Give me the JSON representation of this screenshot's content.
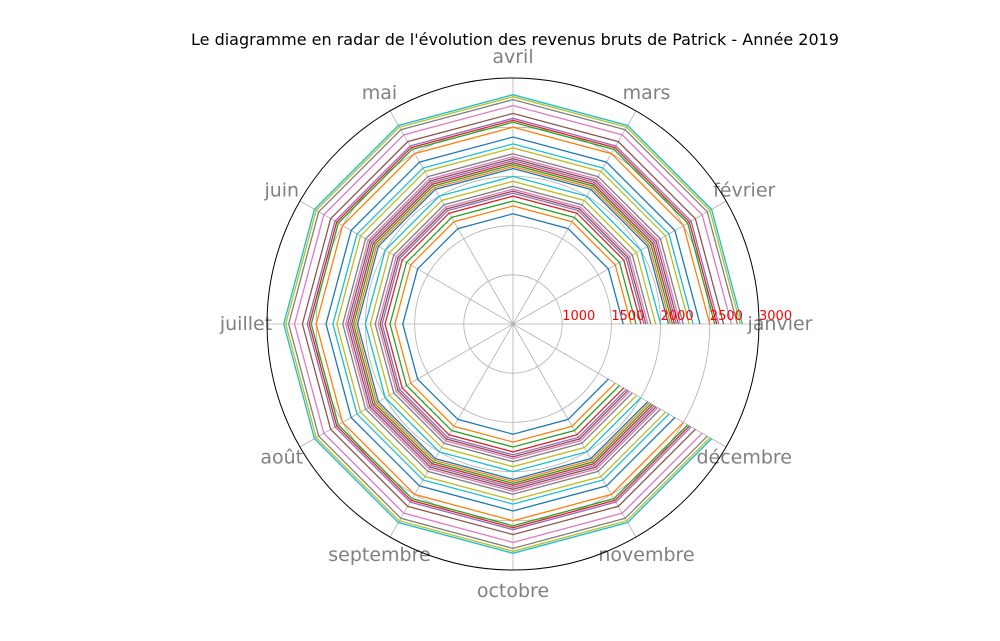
{
  "chart_data": {
    "type": "radar",
    "title": "Le diagramme en radar de l'évolution des revenus bruts de Patrick - Année 2019",
    "categories": [
      "janvier",
      "février",
      "mars",
      "avril",
      "mai",
      "juin",
      "juillet",
      "août",
      "septembre",
      "octobre",
      "novembre",
      "décembre"
    ],
    "radial_ticks": [
      1000,
      1500,
      2000,
      2500,
      3000
    ],
    "radial_tick_color": "#ff0000",
    "rlim": [
      500,
      3000
    ],
    "grid": true,
    "series_colors": [
      "#1f77b4",
      "#ff7f0e",
      "#2ca02c",
      "#d62728",
      "#9467bd",
      "#8c564b",
      "#e377c2",
      "#7f7f7f",
      "#bcbd22",
      "#17becf"
    ],
    "series": [
      {
        "values": [
          1620,
          1620,
          1620,
          1620,
          1620,
          1620,
          1620,
          1620,
          1620,
          1620,
          1620,
          1620
        ]
      },
      {
        "values": [
          1700,
          1700,
          1700,
          1700,
          1700,
          1700,
          1700,
          1700,
          1700,
          1700,
          1700,
          1700
        ]
      },
      {
        "values": [
          1750,
          1750,
          1750,
          1750,
          1750,
          1750,
          1750,
          1750,
          1750,
          1750,
          1750,
          1750
        ]
      },
      {
        "values": [
          1800,
          1800,
          1800,
          1800,
          1800,
          1800,
          1800,
          1800,
          1800,
          1800,
          1800,
          1800
        ]
      },
      {
        "values": [
          1830,
          1830,
          1830,
          1830,
          1830,
          1830,
          1830,
          1830,
          1830,
          1830,
          1830,
          1830
        ]
      },
      {
        "values": [
          1850,
          1850,
          1850,
          1850,
          1850,
          1850,
          1850,
          1850,
          1850,
          1850,
          1850,
          1850
        ]
      },
      {
        "values": [
          1870,
          1870,
          1870,
          1870,
          1870,
          1870,
          1870,
          1870,
          1870,
          1870,
          1870,
          1870
        ]
      },
      {
        "values": [
          1900,
          1900,
          1900,
          1900,
          1900,
          1900,
          1900,
          1900,
          1900,
          1900,
          1900,
          1900
        ]
      },
      {
        "values": [
          1950,
          1950,
          1950,
          1950,
          1950,
          1950,
          1950,
          1950,
          1950,
          1950,
          1950,
          1950
        ]
      },
      {
        "values": [
          2000,
          2000,
          2000,
          2000,
          2000,
          2000,
          2000,
          2000,
          2000,
          2000,
          2000,
          2000
        ]
      },
      {
        "values": [
          2080,
          2080,
          2080,
          2080,
          2080,
          2080,
          2080,
          2080,
          2080,
          2080,
          2080,
          2080
        ]
      },
      {
        "values": [
          2100,
          2100,
          2100,
          2100,
          2100,
          2100,
          2100,
          2100,
          2100,
          2100,
          2100,
          2100
        ]
      },
      {
        "values": [
          2120,
          2120,
          2120,
          2120,
          2120,
          2120,
          2120,
          2120,
          2120,
          2120,
          2120,
          2120
        ]
      },
      {
        "values": [
          2140,
          2140,
          2140,
          2140,
          2140,
          2140,
          2140,
          2140,
          2140,
          2140,
          2140,
          2140
        ]
      },
      {
        "values": [
          2160,
          2160,
          2160,
          2160,
          2160,
          2160,
          2160,
          2160,
          2160,
          2160,
          2160,
          2160
        ]
      },
      {
        "values": [
          2180,
          2180,
          2180,
          2180,
          2180,
          2180,
          2180,
          2180,
          2180,
          2180,
          2180,
          2180
        ]
      },
      {
        "values": [
          2200,
          2200,
          2200,
          2200,
          2200,
          2200,
          2200,
          2200,
          2200,
          2200,
          2200,
          2200
        ]
      },
      {
        "values": [
          2230,
          2230,
          2230,
          2230,
          2230,
          2230,
          2230,
          2230,
          2230,
          2230,
          2230,
          2230
        ]
      },
      {
        "values": [
          2290,
          2290,
          2290,
          2290,
          2290,
          2290,
          2290,
          2290,
          2290,
          2290,
          2290,
          2290
        ]
      },
      {
        "values": [
          2330,
          2330,
          2330,
          2330,
          2330,
          2330,
          2330,
          2330,
          2330,
          2330,
          2330,
          2330
        ]
      },
      {
        "values": [
          2400,
          2400,
          2400,
          2400,
          2400,
          2400,
          2400,
          2400,
          2400,
          2400,
          2400,
          2400
        ]
      },
      {
        "values": [
          2500,
          2500,
          2500,
          2500,
          2500,
          2500,
          2500,
          2500,
          2500,
          2500,
          2500,
          2500
        ]
      },
      {
        "values": [
          2550,
          2550,
          2550,
          2550,
          2550,
          2550,
          2550,
          2550,
          2550,
          2550,
          2550,
          2550
        ]
      },
      {
        "values": [
          2570,
          2570,
          2570,
          2570,
          2570,
          2570,
          2570,
          2570,
          2570,
          2570,
          2570,
          2570
        ]
      },
      {
        "values": [
          2590,
          2590,
          2590,
          2590,
          2590,
          2590,
          2590,
          2590,
          2590,
          2590,
          2590,
          2590
        ]
      },
      {
        "values": [
          2640,
          2640,
          2640,
          2640,
          2640,
          2640,
          2640,
          2640,
          2640,
          2640,
          2640,
          2640
        ]
      },
      {
        "values": [
          2720,
          2720,
          2720,
          2720,
          2720,
          2720,
          2720,
          2720,
          2720,
          2720,
          2720,
          2720
        ]
      },
      {
        "values": [
          2780,
          2780,
          2780,
          2780,
          2780,
          2780,
          2780,
          2780,
          2780,
          2780,
          2780,
          2780
        ]
      },
      {
        "values": [
          2810,
          2810,
          2810,
          2810,
          2810,
          2810,
          2810,
          2810,
          2810,
          2810,
          2810,
          2810
        ]
      },
      {
        "values": [
          2830,
          2830,
          2830,
          2830,
          2830,
          2830,
          2830,
          2830,
          2830,
          2830,
          2830,
          2830
        ]
      }
    ]
  }
}
